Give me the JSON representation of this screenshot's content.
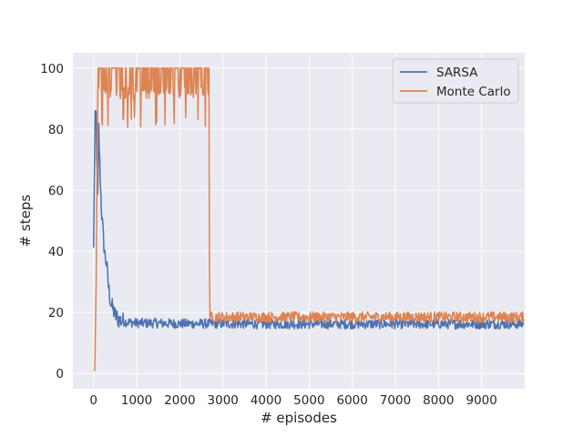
{
  "chart_data": {
    "type": "line",
    "title": "",
    "xlabel": "# episodes",
    "ylabel": "# steps",
    "xlim": [
      -480,
      10000
    ],
    "ylim": [
      -5,
      105
    ],
    "xticks": [
      0,
      1000,
      2000,
      3000,
      4000,
      5000,
      6000,
      7000,
      8000,
      9000
    ],
    "yticks": [
      0,
      20,
      40,
      60,
      80,
      100
    ],
    "grid": true,
    "legend_position": "top-right",
    "background_color": "#eaeaf2",
    "grid_color": "#ffffff",
    "series": [
      {
        "name": "SARSA",
        "color": "#4c72b0",
        "x": [
          0,
          20,
          40,
          60,
          80,
          100,
          120,
          140,
          160,
          180,
          200,
          250,
          300,
          350,
          400,
          450,
          500,
          600,
          700,
          800,
          1000,
          1500,
          2000,
          2500,
          2700,
          3000,
          4000,
          5000,
          6000,
          7000,
          8000,
          9000,
          9980
        ],
        "y": [
          40,
          70,
          85,
          84,
          65,
          55,
          80,
          70,
          62,
          55,
          50,
          40,
          36,
          28,
          23,
          21,
          19,
          17.5,
          17,
          16.8,
          16.5,
          16.5,
          16.3,
          16.3,
          16.3,
          16.3,
          16.2,
          16.2,
          16.2,
          16.2,
          16.2,
          16.2,
          16.2
        ]
      },
      {
        "name": "Monte Carlo",
        "color": "#dd8452",
        "x": [
          0,
          30,
          60,
          100,
          200,
          500,
          1000,
          1500,
          2000,
          2500,
          2650,
          2700,
          3000,
          4000,
          5000,
          6000,
          7000,
          8000,
          9000,
          9980
        ],
        "y": [
          1,
          1,
          30,
          97,
          96,
          96,
          95,
          95,
          95,
          95,
          95,
          18.5,
          18.5,
          18.5,
          18.5,
          18.5,
          18.5,
          18.5,
          18.5,
          18.5
        ]
      }
    ]
  }
}
